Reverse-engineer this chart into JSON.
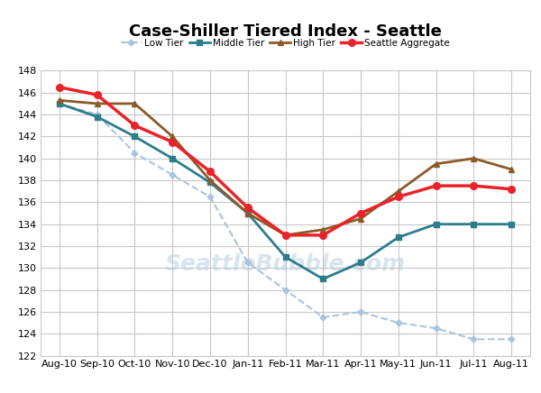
{
  "title": "Case-Shiller Tiered Index - Seattle",
  "x_labels": [
    "Aug-10",
    "Sep-10",
    "Oct-10",
    "Nov-10",
    "Dec-10",
    "Jan-11",
    "Feb-11",
    "Mar-11",
    "Apr-11",
    "May-11",
    "Jun-11",
    "Jul-11",
    "Aug-11"
  ],
  "low_tier": [
    145.0,
    144.0,
    140.5,
    138.5,
    136.5,
    130.5,
    128.0,
    125.5,
    126.0,
    125.0,
    124.5,
    123.5,
    123.5
  ],
  "middle_tier": [
    145.0,
    143.8,
    142.0,
    140.0,
    137.8,
    135.0,
    131.0,
    129.0,
    130.5,
    132.8,
    134.0,
    134.0,
    134.0
  ],
  "high_tier": [
    145.3,
    145.0,
    145.0,
    142.0,
    138.0,
    135.0,
    133.0,
    133.5,
    134.5,
    137.0,
    139.5,
    140.0,
    139.0
  ],
  "seattle_agg": [
    146.5,
    145.8,
    143.0,
    141.5,
    138.8,
    135.5,
    133.0,
    133.0,
    135.0,
    136.5,
    137.5,
    137.5,
    137.2
  ],
  "low_color": "#aac4de",
  "middle_color": "#2e7d8c",
  "high_color": "#8B5A2B",
  "agg_color": "#e8232a",
  "ylim": [
    122,
    148
  ],
  "yticks": [
    122,
    124,
    126,
    128,
    130,
    132,
    134,
    136,
    138,
    140,
    142,
    144,
    146,
    148
  ],
  "grid_color": "#c8c8c8",
  "watermark": "SeattleBubble.com",
  "bg_color": "#ffffff",
  "legend_labels": [
    "Low Tier",
    "Middle Tier",
    "High Tier",
    "Seattle Aggregate"
  ]
}
